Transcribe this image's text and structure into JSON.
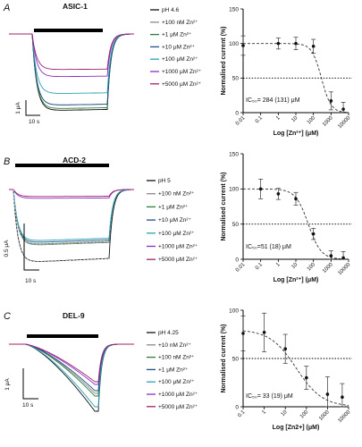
{
  "colors": {
    "control": "#111111",
    "zn_100nM": "#8a8a8a",
    "zn_1uM": "#2e7d3a",
    "zn_10uM": "#1f4e8c",
    "zn_100uM": "#2aa2b8",
    "zn_1000uM": "#8a2cc8",
    "zn_5000uM": "#a0226a"
  },
  "chart_data": [
    {
      "type": "line",
      "panel": "A",
      "panel_title": "ASIC-1",
      "subtype": "current-traces",
      "scale_bar": {
        "y_label": "1 μA",
        "x_label": "10 s"
      },
      "series": [
        {
          "name": "pH 4.6",
          "color_key": "control"
        },
        {
          "name": "+100 nM Zn²⁺",
          "color_key": "zn_100nM"
        },
        {
          "name": "+1 μM Zn²⁺",
          "color_key": "zn_1uM"
        },
        {
          "name": "+10 μM Zn²⁺",
          "color_key": "zn_10uM"
        },
        {
          "name": "+100 μM Zn²⁺",
          "color_key": "zn_100uM"
        },
        {
          "name": "+1000 μM Zn²⁺",
          "color_key": "zn_1000uM"
        },
        {
          "name": "+5000 μM Zn²⁺",
          "color_key": "zn_5000uM"
        }
      ]
    },
    {
      "type": "scatter",
      "panel": "A",
      "subtype": "dose-response",
      "xlabel": "Log [Zn²⁺] (μM)",
      "ylabel": "Normalised current (%)",
      "x_scale": "log",
      "xlim": [
        0.01,
        10000
      ],
      "ylim": [
        0,
        150
      ],
      "x_tick_labels": [
        "0.01",
        "0.1",
        "1",
        "10",
        "100",
        "1000",
        "10000"
      ],
      "y_tick_labels": [
        "0",
        "50",
        "100",
        "150"
      ],
      "reference_line_y": 50,
      "annotation": "IC₅₀= 284 (131) μM",
      "points": [
        {
          "x": 0.01,
          "y": 97,
          "err": 14
        },
        {
          "x": 1,
          "y": 100,
          "err": 8
        },
        {
          "x": 10,
          "y": 100,
          "err": 9
        },
        {
          "x": 100,
          "y": 96,
          "err": 10
        },
        {
          "x": 1000,
          "y": 17,
          "err": 13
        },
        {
          "x": 5000,
          "y": 5,
          "err": 10
        }
      ],
      "fit": {
        "ic50": 284,
        "hill": 1.6,
        "top": 100
      }
    },
    {
      "type": "line",
      "panel": "B",
      "panel_title": "ACD-2",
      "subtype": "current-traces",
      "scale_bar": {
        "y_label": "0.5 μA",
        "x_label": "10 s"
      },
      "series": [
        {
          "name": "pH 5",
          "color_key": "control"
        },
        {
          "name": "+100 nM Zn²⁺",
          "color_key": "zn_100nM"
        },
        {
          "name": "+1 μM Zn²⁺",
          "color_key": "zn_1uM"
        },
        {
          "name": "+10 μM Zn²⁺",
          "color_key": "zn_10uM"
        },
        {
          "name": "+100 μM Zn²⁺",
          "color_key": "zn_100uM"
        },
        {
          "name": "+1000 μM Zn²⁺",
          "color_key": "zn_1000uM"
        },
        {
          "name": "+5000 μM Zn²⁺",
          "color_key": "zn_5000uM"
        }
      ]
    },
    {
      "type": "scatter",
      "panel": "B",
      "subtype": "dose-response",
      "xlabel": "Log [Zn²⁺] (μM)",
      "ylabel": "Normalised current (%)",
      "x_scale": "log",
      "xlim": [
        0.01,
        10000
      ],
      "ylim": [
        0,
        150
      ],
      "x_tick_labels": [
        "0.01",
        "0.1",
        "1",
        "10",
        "100",
        "1000",
        "10000"
      ],
      "y_tick_labels": [
        "0",
        "50",
        "100",
        "150"
      ],
      "reference_line_y": 50,
      "annotation": "IC₅₀=51 (18) μM",
      "points": [
        {
          "x": 0.1,
          "y": 100,
          "err": 14
        },
        {
          "x": 1,
          "y": 93,
          "err": 8
        },
        {
          "x": 10,
          "y": 86,
          "err": 9
        },
        {
          "x": 100,
          "y": 36,
          "err": 8
        },
        {
          "x": 1000,
          "y": 5,
          "err": 7
        },
        {
          "x": 5000,
          "y": 2,
          "err": 9
        }
      ],
      "fit": {
        "ic50": 51,
        "hill": 1.2,
        "top": 100
      }
    },
    {
      "type": "line",
      "panel": "C",
      "panel_title": "DEL-9",
      "subtype": "current-traces",
      "scale_bar": {
        "y_label": "1 μA",
        "x_label": "10 s"
      },
      "series": [
        {
          "name": "pH 4.25",
          "color_key": "control"
        },
        {
          "name": "+10 nM Zn²⁺",
          "color_key": "zn_100nM"
        },
        {
          "name": "+100 nM Zn²⁺",
          "color_key": "zn_1uM"
        },
        {
          "name": "+1 μM Zn²⁺",
          "color_key": "zn_10uM"
        },
        {
          "name": "+100 μM Zn²⁺",
          "color_key": "zn_100uM"
        },
        {
          "name": "+1000 μM Zn²⁺",
          "color_key": "zn_1000uM"
        },
        {
          "name": "+5000 μM Zn²⁺",
          "color_key": "zn_5000uM"
        }
      ]
    },
    {
      "type": "scatter",
      "panel": "C",
      "subtype": "dose-response",
      "xlabel": "Log [Zn2+] (μM)",
      "ylabel": "Normalised current (%)",
      "x_scale": "log",
      "xlim": [
        0.1,
        10000
      ],
      "ylim": [
        0,
        100
      ],
      "x_tick_labels": [
        "0.1",
        "1",
        "10",
        "100",
        "1000",
        "10000"
      ],
      "y_tick_labels": [
        "0",
        "50",
        "100"
      ],
      "reference_line_y": 50,
      "annotation": "IC₅₀= 33 (19) μM",
      "points": [
        {
          "x": 0.1,
          "y": 76,
          "err": 18
        },
        {
          "x": 1,
          "y": 77,
          "err": 20
        },
        {
          "x": 10,
          "y": 60,
          "err": 15
        },
        {
          "x": 100,
          "y": 30,
          "err": 12
        },
        {
          "x": 1000,
          "y": 13,
          "err": 18
        },
        {
          "x": 5000,
          "y": 10,
          "err": 14
        }
      ],
      "fit": {
        "ic50": 33,
        "hill": 0.7,
        "top": 80
      }
    }
  ],
  "panel_letters": [
    "A",
    "B",
    "C"
  ]
}
